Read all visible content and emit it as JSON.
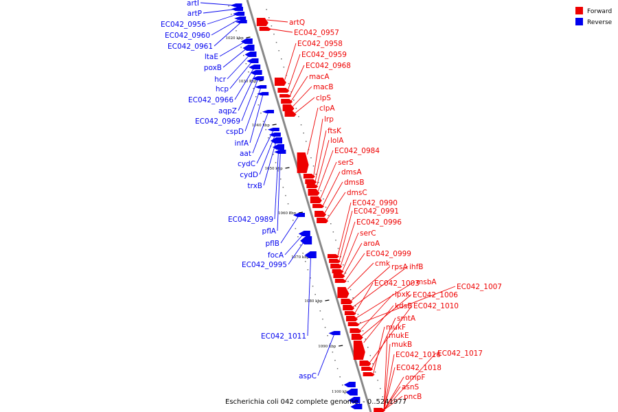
{
  "title": "Escherichia coli 042 complete genome. - 0..5241977",
  "colors": {
    "forward": "#ee0000",
    "reverse": "#0000ee",
    "axis": "#888888"
  },
  "legend": [
    {
      "label": "Forward",
      "color": "#ee0000"
    },
    {
      "label": "Reverse",
      "color": "#0000ee"
    }
  ],
  "ticks": [
    "1020 kbp",
    "1030 kbp",
    "1040 kbp",
    "1050 kbp",
    "1060 kbp",
    "1070 kbp",
    "1080 kbp",
    "1090 kbp",
    "1100 kbp"
  ],
  "reverse_genes": [
    "artI",
    "artP",
    "EC042_0956",
    "EC042_0960",
    "EC042_0961",
    "ltaE",
    "poxB",
    "hcr",
    "hcp",
    "EC042_0966",
    "aqpZ",
    "EC042_0969",
    "cspD",
    "infA",
    "aat",
    "cydC",
    "cydD",
    "trxB",
    "EC042_0989",
    "pflA",
    "pflB",
    "focA",
    "EC042_0995",
    "EC042_1011",
    "aspC"
  ],
  "forward_genes": [
    "artQ",
    "EC042_0957",
    "EC042_0958",
    "EC042_0959",
    "EC042_0968",
    "macA",
    "macB",
    "clpS",
    "clpA",
    "lrp",
    "ftsK",
    "lolA",
    "EC042_0984",
    "serS",
    "dmsA",
    "dmsB",
    "dmsC",
    "EC042_0990",
    "EC042_0991",
    "EC042_0996",
    "serC",
    "aroA",
    "EC042_0999",
    "cmk",
    "rpsA",
    "ihfB",
    "EC042_1003",
    "msbA",
    "EC042_1007",
    "lpxK",
    "EC042_1006",
    "kdsB",
    "EC042_1010",
    "smtA",
    "mukF",
    "mukE",
    "mukB",
    "EC042_1016",
    "EC042_1017",
    "EC042_1018",
    "ompF",
    "asnS",
    "pncB"
  ]
}
